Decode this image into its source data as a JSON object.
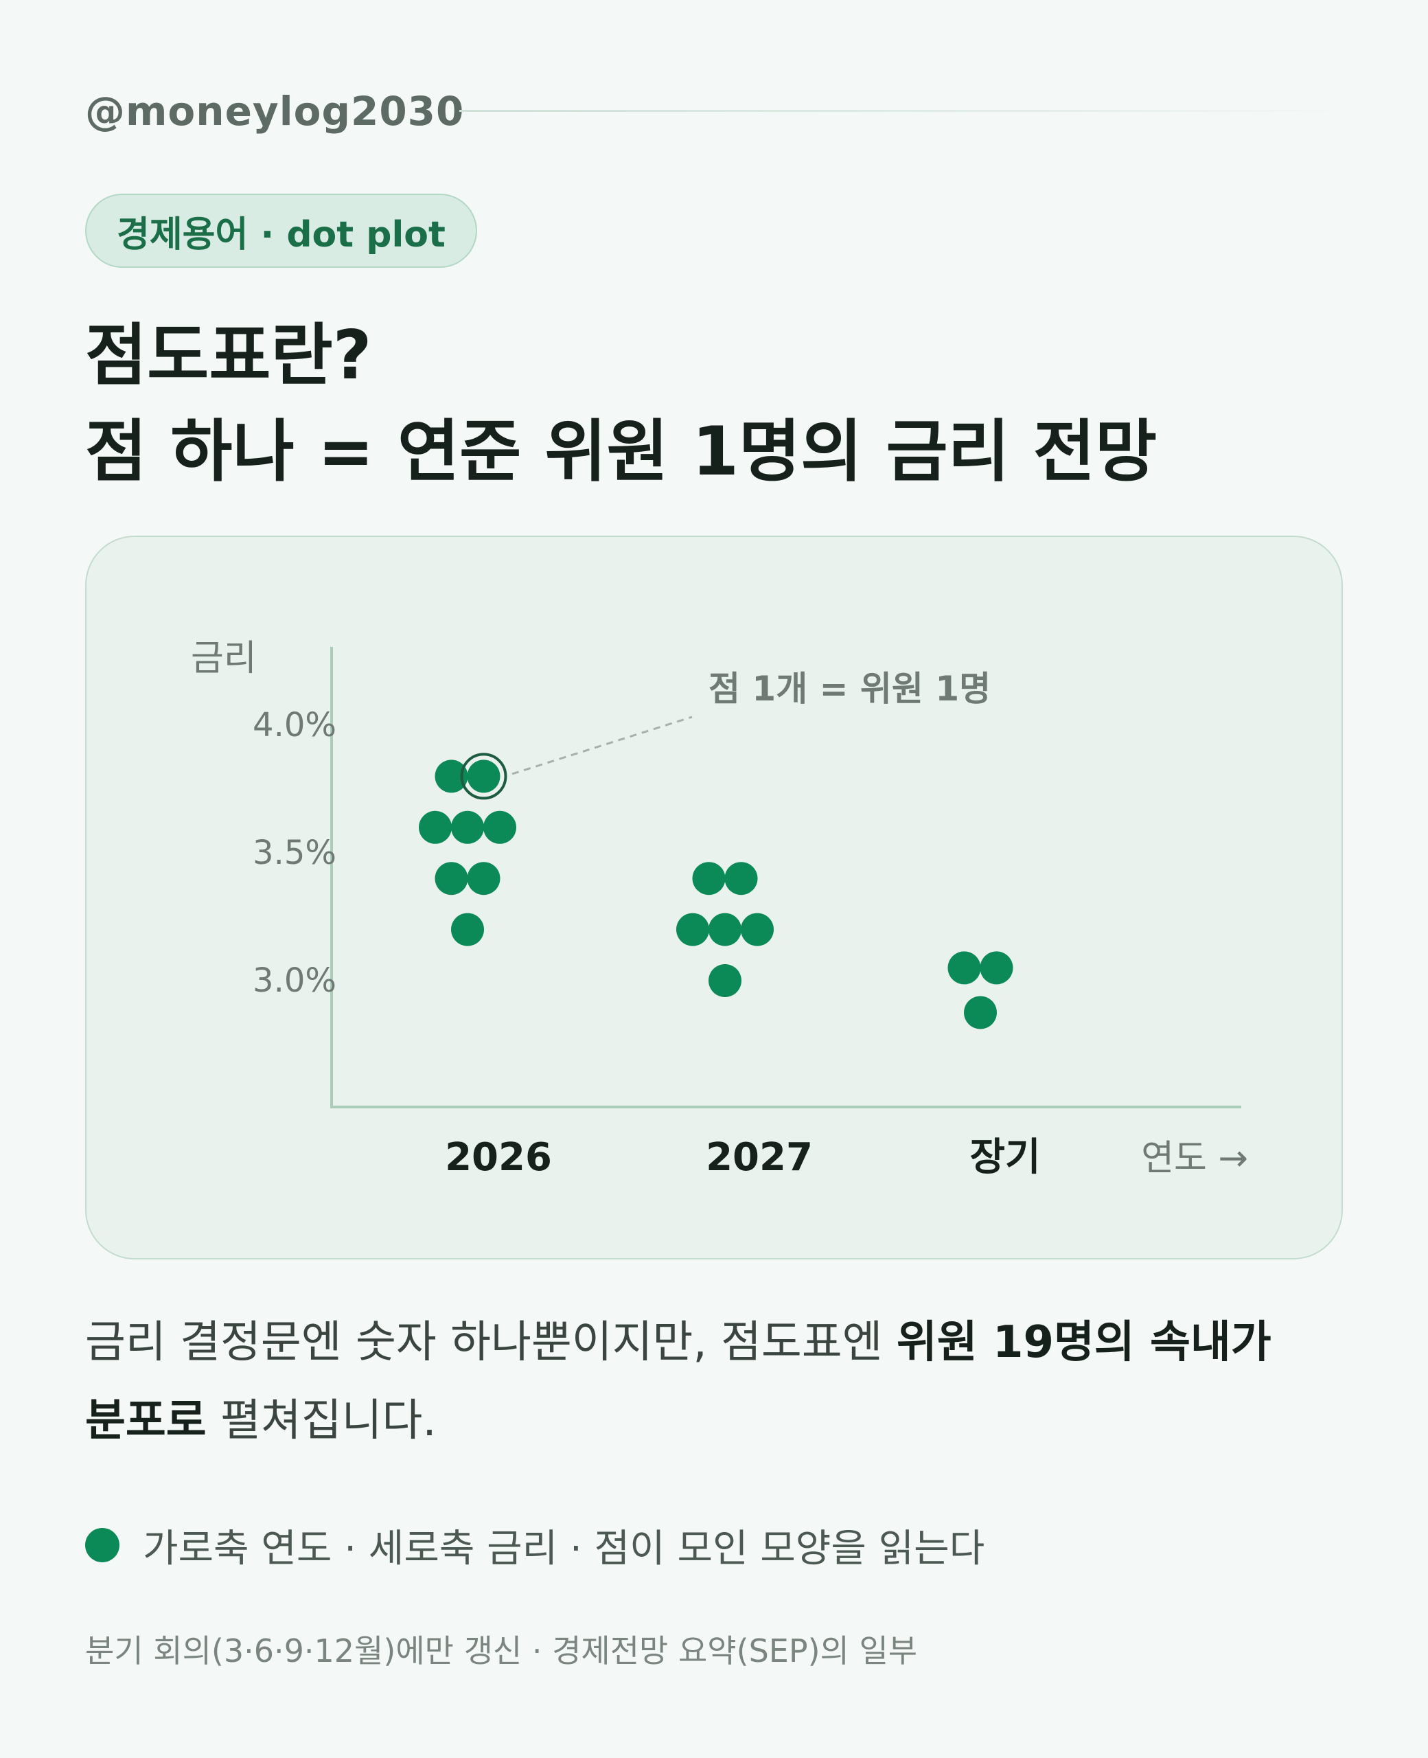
{
  "header": {
    "handle": "@moneylog2030"
  },
  "tag": {
    "label": "경제용어 · dot plot"
  },
  "title": {
    "line1": "점도표란?",
    "line2": "점 하나 = 연준 위원 1명의 금리 전망"
  },
  "chart_data": {
    "type": "scatter",
    "ylabel": "금리",
    "xlabel": "연도 →",
    "y_ticks": [
      "4.0%",
      "3.5%",
      "3.0%"
    ],
    "categories": [
      "2026",
      "2027",
      "장기"
    ],
    "annotation": "점 1개 = 위원 1명",
    "points": {
      "2026": [
        3.8,
        3.8,
        3.6,
        3.6,
        3.6,
        3.4,
        3.4,
        3.2
      ],
      "2027": [
        3.4,
        3.4,
        3.2,
        3.2,
        3.2,
        3.0
      ],
      "장기": [
        3.05,
        3.05,
        2.875
      ]
    },
    "ylim": [
      2.6,
      4.0
    ],
    "dot_color": "#0b8a57",
    "grid": false
  },
  "body": {
    "part1": "금리 결정문엔 숫자 하나뿐이지만, 점도표엔 ",
    "bold1": "위원 19명의 속내가",
    "bold2": "분포로",
    "part2": " 펼쳐집니다."
  },
  "legend": {
    "text": "가로축 연도 · 세로축 금리 · 점이 모인 모양을 읽는다",
    "color": "#0b8a57"
  },
  "footnote": "분기 회의(3·6·9·12월)에만 갱신 · 경제전망 요약(SEP)의 일부"
}
